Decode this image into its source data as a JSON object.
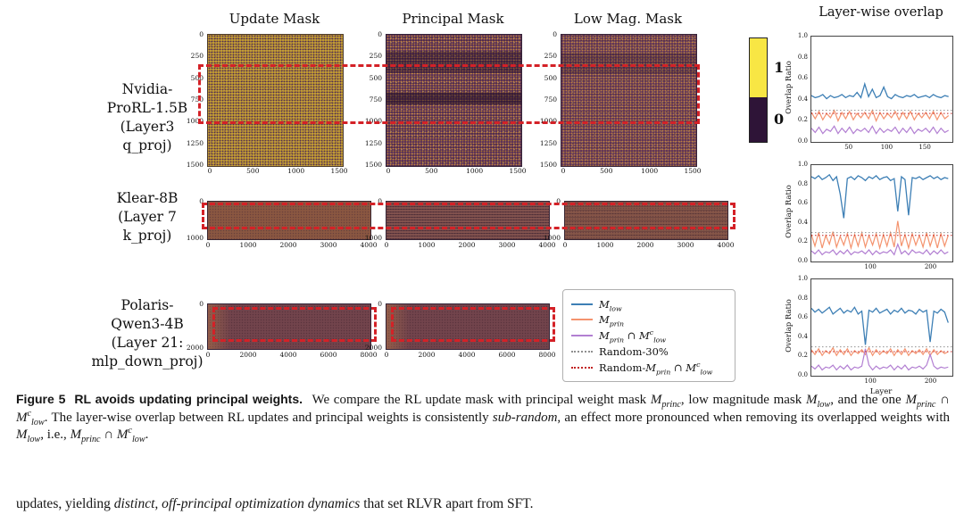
{
  "figure": {
    "col_titles": [
      "Update Mask",
      "Principal Mask",
      "Low Mag. Mask"
    ],
    "overlap_title": "Layer-wise overlap",
    "annotation_color": "#d42127",
    "rows": [
      {
        "label_lines": [
          "Nvidia-",
          "ProRL-1.5B",
          "(Layer3",
          "q_proj)"
        ],
        "yticks": [
          "0",
          "250",
          "500",
          "750",
          "1000",
          "1250",
          "1500"
        ],
        "xticks": [
          "0",
          "500",
          "1000",
          "1500"
        ]
      },
      {
        "label_lines": [
          "Klear-8B",
          "(Layer 7",
          "k_proj)"
        ],
        "yticks": [
          "0",
          "1000"
        ],
        "xticks": [
          "0",
          "1000",
          "2000",
          "3000",
          "4000"
        ]
      },
      {
        "label_lines": [
          "Polaris-",
          "Qwen3-4B",
          "(Layer 21:",
          "mlp_down_proj)"
        ],
        "yticks": [
          "0",
          "2000"
        ],
        "xticks": [
          "0",
          "2000",
          "4000",
          "6000",
          "8000"
        ]
      }
    ],
    "colorbar": {
      "top_label": "1",
      "bottom_label": "0",
      "top_color": "#f8e644",
      "bottom_color": "#2e1437"
    }
  },
  "legend": {
    "items": [
      {
        "label": "$M_{low}$",
        "color": "#3d7fb5",
        "dash": null
      },
      {
        "label": "$M_{prin}$",
        "color": "#f4936e",
        "dash": null
      },
      {
        "label": "$M_{prin} ∩ M^{c}_{low}$",
        "color": "#b27fd2",
        "dash": null
      },
      {
        "label": "Random-30%",
        "color": "#909090",
        "dash": "2,3"
      },
      {
        "label": "Random-$M_{prin} ∩ M^{c}_{low}$",
        "color": "#c22222",
        "dash": "2,3"
      }
    ]
  },
  "chart_data": [
    {
      "type": "line",
      "model": "Nvidia-ProRL-1.5B (Layer3 q_proj)",
      "ylabel": "Overlap Ratio",
      "xlabel": "",
      "xlim": [
        0,
        185
      ],
      "ylim": [
        0,
        1
      ],
      "xticks": [
        50,
        100,
        150
      ],
      "yticks": [
        0,
        0.2,
        0.4,
        0.6,
        0.8,
        1.0
      ],
      "ytick_labels": [
        "0.0",
        "0.2",
        "0.4",
        "0.6",
        "0.8",
        "1.0"
      ],
      "series": [
        {
          "name": "M_low",
          "color": "#3d7fb5",
          "lw": 1.3,
          "x": [
            0,
            5,
            10,
            15,
            20,
            25,
            30,
            35,
            40,
            45,
            50,
            55,
            60,
            65,
            70,
            75,
            80,
            85,
            90,
            95,
            100,
            105,
            110,
            115,
            120,
            125,
            130,
            135,
            140,
            145,
            150,
            155,
            160,
            165,
            170,
            175,
            180
          ],
          "y": [
            0.44,
            0.42,
            0.43,
            0.45,
            0.41,
            0.44,
            0.42,
            0.43,
            0.45,
            0.42,
            0.44,
            0.43,
            0.47,
            0.42,
            0.55,
            0.43,
            0.5,
            0.42,
            0.44,
            0.52,
            0.43,
            0.41,
            0.45,
            0.43,
            0.42,
            0.44,
            0.43,
            0.45,
            0.42,
            0.43,
            0.44,
            0.42,
            0.45,
            0.43,
            0.42,
            0.44,
            0.43
          ]
        },
        {
          "name": "M_prin",
          "color": "#f4936e",
          "lw": 1.2,
          "x": [
            0,
            5,
            10,
            15,
            20,
            25,
            30,
            35,
            40,
            45,
            50,
            55,
            60,
            65,
            70,
            75,
            80,
            85,
            90,
            95,
            100,
            105,
            110,
            115,
            120,
            125,
            130,
            135,
            140,
            145,
            150,
            155,
            160,
            165,
            170,
            175,
            180
          ],
          "y": [
            0.28,
            0.22,
            0.29,
            0.21,
            0.27,
            0.23,
            0.3,
            0.2,
            0.28,
            0.22,
            0.29,
            0.21,
            0.27,
            0.23,
            0.28,
            0.22,
            0.3,
            0.2,
            0.28,
            0.22,
            0.27,
            0.23,
            0.29,
            0.21,
            0.28,
            0.22,
            0.29,
            0.21,
            0.27,
            0.23,
            0.28,
            0.22,
            0.29,
            0.21,
            0.28,
            0.22,
            0.25
          ]
        },
        {
          "name": "M_prin ∩ M^c_low",
          "color": "#b27fd2",
          "lw": 1.2,
          "x": [
            0,
            5,
            10,
            15,
            20,
            25,
            30,
            35,
            40,
            45,
            50,
            55,
            60,
            65,
            70,
            75,
            80,
            85,
            90,
            95,
            100,
            105,
            110,
            115,
            120,
            125,
            130,
            135,
            140,
            145,
            150,
            155,
            160,
            165,
            170,
            175,
            180
          ],
          "y": [
            0.13,
            0.09,
            0.14,
            0.08,
            0.12,
            0.1,
            0.15,
            0.08,
            0.13,
            0.09,
            0.14,
            0.08,
            0.12,
            0.1,
            0.13,
            0.09,
            0.15,
            0.08,
            0.13,
            0.09,
            0.12,
            0.1,
            0.14,
            0.08,
            0.13,
            0.09,
            0.14,
            0.08,
            0.12,
            0.1,
            0.13,
            0.09,
            0.14,
            0.08,
            0.13,
            0.09,
            0.11
          ]
        },
        {
          "name": "Random-30%",
          "color": "#909090",
          "dash": "1.5,2.5",
          "lw": 1,
          "y_const": 0.3
        },
        {
          "name": "Random-M_prin ∩ M^c_low",
          "color": "#c22222",
          "dash": "1.5,2.5",
          "lw": 1,
          "y_const": 0.27
        }
      ]
    },
    {
      "type": "line",
      "model": "Klear-8B (Layer 7 k_proj)",
      "ylabel": "Overlap Ratio",
      "xlabel": "",
      "xlim": [
        0,
        235
      ],
      "ylim": [
        0,
        1
      ],
      "xticks": [
        100,
        200
      ],
      "yticks": [
        0,
        0.2,
        0.4,
        0.6,
        0.8,
        1.0
      ],
      "ytick_labels": [
        "0.0",
        "0.2",
        "0.4",
        "0.6",
        "0.8",
        "1.0"
      ],
      "series": [
        {
          "name": "M_low",
          "color": "#3d7fb5",
          "lw": 1.3,
          "x": [
            0,
            6,
            12,
            18,
            24,
            30,
            36,
            42,
            48,
            54,
            60,
            66,
            72,
            78,
            84,
            90,
            96,
            102,
            108,
            114,
            120,
            126,
            132,
            138,
            144,
            150,
            156,
            162,
            168,
            174,
            180,
            186,
            192,
            198,
            204,
            210,
            216,
            222,
            228
          ],
          "y": [
            0.88,
            0.86,
            0.89,
            0.85,
            0.87,
            0.9,
            0.84,
            0.88,
            0.7,
            0.45,
            0.86,
            0.88,
            0.85,
            0.89,
            0.87,
            0.84,
            0.88,
            0.86,
            0.89,
            0.85,
            0.87,
            0.88,
            0.84,
            0.86,
            0.52,
            0.88,
            0.85,
            0.48,
            0.87,
            0.86,
            0.88,
            0.85,
            0.87,
            0.89,
            0.86,
            0.88,
            0.85,
            0.87,
            0.86
          ]
        },
        {
          "name": "M_prin",
          "color": "#f4936e",
          "lw": 1.2,
          "x": [
            0,
            6,
            12,
            18,
            24,
            30,
            36,
            42,
            48,
            54,
            60,
            66,
            72,
            78,
            84,
            90,
            96,
            102,
            108,
            114,
            120,
            126,
            132,
            138,
            144,
            150,
            156,
            162,
            168,
            174,
            180,
            186,
            192,
            198,
            204,
            210,
            216,
            222,
            228
          ],
          "y": [
            0.28,
            0.16,
            0.3,
            0.14,
            0.27,
            0.18,
            0.31,
            0.15,
            0.26,
            0.17,
            0.29,
            0.14,
            0.28,
            0.16,
            0.3,
            0.15,
            0.27,
            0.17,
            0.29,
            0.14,
            0.28,
            0.16,
            0.3,
            0.15,
            0.42,
            0.16,
            0.28,
            0.14,
            0.29,
            0.17,
            0.27,
            0.15,
            0.3,
            0.16,
            0.28,
            0.14,
            0.29,
            0.16,
            0.27
          ]
        },
        {
          "name": "M_prin ∩ M^c_low",
          "color": "#b27fd2",
          "lw": 1.2,
          "x": [
            0,
            6,
            12,
            18,
            24,
            30,
            36,
            42,
            48,
            54,
            60,
            66,
            72,
            78,
            84,
            90,
            96,
            102,
            108,
            114,
            120,
            126,
            132,
            138,
            144,
            150,
            156,
            162,
            168,
            174,
            180,
            186,
            192,
            198,
            204,
            210,
            216,
            222,
            228
          ],
          "y": [
            0.11,
            0.08,
            0.12,
            0.07,
            0.1,
            0.09,
            0.12,
            0.07,
            0.11,
            0.08,
            0.12,
            0.07,
            0.1,
            0.09,
            0.11,
            0.08,
            0.12,
            0.07,
            0.11,
            0.08,
            0.1,
            0.09,
            0.12,
            0.07,
            0.18,
            0.08,
            0.11,
            0.07,
            0.12,
            0.09,
            0.1,
            0.08,
            0.12,
            0.07,
            0.11,
            0.08,
            0.12,
            0.08,
            0.1
          ]
        },
        {
          "name": "Random-30%",
          "color": "#909090",
          "dash": "1.5,2.5",
          "lw": 1,
          "y_const": 0.3
        },
        {
          "name": "Random-M_prin ∩ M^c_low",
          "color": "#c22222",
          "dash": "1.5,2.5",
          "lw": 1,
          "y_const": 0.27
        }
      ]
    },
    {
      "type": "line",
      "model": "Polaris-Qwen3-4B (Layer 21: mlp_down_proj)",
      "ylabel": "Overlap Ratio",
      "xlabel": "Layer",
      "xlim": [
        0,
        235
      ],
      "ylim": [
        0,
        1
      ],
      "xticks": [
        100,
        200
      ],
      "yticks": [
        0,
        0.2,
        0.4,
        0.6,
        0.8,
        1.0
      ],
      "ytick_labels": [
        "0.0",
        "0.2",
        "0.4",
        "0.6",
        "0.8",
        "1.0"
      ],
      "series": [
        {
          "name": "M_low",
          "color": "#3d7fb5",
          "lw": 1.3,
          "x": [
            0,
            6,
            12,
            18,
            24,
            30,
            36,
            42,
            48,
            54,
            60,
            66,
            72,
            78,
            84,
            90,
            96,
            102,
            108,
            114,
            120,
            126,
            132,
            138,
            144,
            150,
            156,
            162,
            168,
            174,
            180,
            186,
            192,
            198,
            204,
            210,
            216,
            222,
            228
          ],
          "y": [
            0.7,
            0.66,
            0.69,
            0.65,
            0.68,
            0.71,
            0.64,
            0.67,
            0.7,
            0.65,
            0.68,
            0.66,
            0.71,
            0.64,
            0.67,
            0.32,
            0.68,
            0.66,
            0.7,
            0.65,
            0.67,
            0.69,
            0.64,
            0.68,
            0.66,
            0.7,
            0.65,
            0.68,
            0.67,
            0.64,
            0.69,
            0.66,
            0.68,
            0.35,
            0.67,
            0.65,
            0.69,
            0.66,
            0.55
          ]
        },
        {
          "name": "M_prin",
          "color": "#f4936e",
          "lw": 1.2,
          "x": [
            0,
            6,
            12,
            18,
            24,
            30,
            36,
            42,
            48,
            54,
            60,
            66,
            72,
            78,
            84,
            90,
            96,
            102,
            108,
            114,
            120,
            126,
            132,
            138,
            144,
            150,
            156,
            162,
            168,
            174,
            180,
            186,
            192,
            198,
            204,
            210,
            216,
            222,
            228
          ],
          "y": [
            0.27,
            0.22,
            0.28,
            0.21,
            0.26,
            0.23,
            0.29,
            0.21,
            0.27,
            0.22,
            0.28,
            0.21,
            0.26,
            0.23,
            0.27,
            0.22,
            0.29,
            0.21,
            0.27,
            0.22,
            0.26,
            0.23,
            0.28,
            0.21,
            0.27,
            0.22,
            0.28,
            0.21,
            0.26,
            0.23,
            0.27,
            0.22,
            0.28,
            0.21,
            0.27,
            0.22,
            0.26,
            0.23,
            0.25
          ]
        },
        {
          "name": "M_prin ∩ M^c_low",
          "color": "#b27fd2",
          "lw": 1.2,
          "x": [
            0,
            6,
            12,
            18,
            24,
            30,
            36,
            42,
            48,
            54,
            60,
            66,
            72,
            78,
            84,
            90,
            96,
            102,
            108,
            114,
            120,
            126,
            132,
            138,
            144,
            150,
            156,
            162,
            168,
            174,
            180,
            186,
            192,
            198,
            204,
            210,
            216,
            222,
            228
          ],
          "y": [
            0.1,
            0.07,
            0.11,
            0.06,
            0.09,
            0.08,
            0.11,
            0.06,
            0.1,
            0.07,
            0.11,
            0.06,
            0.09,
            0.08,
            0.1,
            0.28,
            0.11,
            0.06,
            0.1,
            0.07,
            0.09,
            0.08,
            0.11,
            0.06,
            0.1,
            0.07,
            0.11,
            0.06,
            0.09,
            0.08,
            0.1,
            0.07,
            0.11,
            0.22,
            0.1,
            0.07,
            0.09,
            0.08,
            0.09
          ]
        },
        {
          "name": "Random-30%",
          "color": "#909090",
          "dash": "1.5,2.5",
          "lw": 1,
          "y_const": 0.3
        },
        {
          "name": "Random-M_prin ∩ M^c_low",
          "color": "#c22222",
          "dash": "1.5,2.5",
          "lw": 1,
          "y_const": 0.25
        }
      ]
    }
  ],
  "caption": {
    "label": "Figure 5",
    "title": "RL avoids updating principal weights.",
    "body": "We compare the RL update mask with principal weight mask $M_{princ}$, low magnitude mask $M_{low}$, and the one $M_{princ} ∩ M^{c}_{low}$. The layer-wise overlap between RL updates and principal weights is consistently *sub-random*, an effect more pronounced when removing its overlapped weights with $M_{low}$, i.e., $M_{princ} ∩ M^{c}_{low}$."
  },
  "body_text": "updates, yielding *distinct, off-principal optimization dynamics* that set RLVR apart from SFT."
}
